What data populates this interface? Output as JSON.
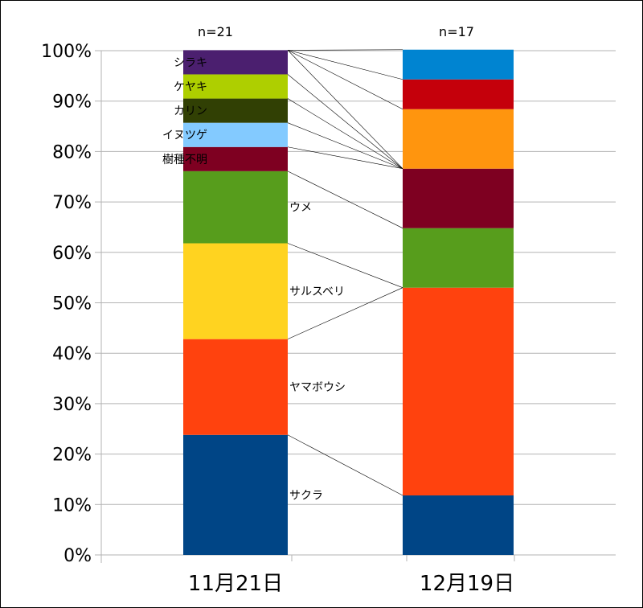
{
  "chart_data": {
    "type": "bar",
    "stacked": true,
    "normalized": true,
    "categories": [
      "11月21日",
      "12月19日"
    ],
    "sample_sizes": [
      "n=21",
      "n=17"
    ],
    "series": [
      {
        "name": "サクラ",
        "color": "#004586",
        "values": [
          23.8,
          11.8
        ]
      },
      {
        "name": "ヤマボウシ",
        "color": "#ff420e",
        "values": [
          19.0,
          41.2
        ]
      },
      {
        "name": "サルスベリ",
        "color": "#ffd320",
        "values": [
          19.0,
          0
        ]
      },
      {
        "name": "ウメ",
        "color": "#579d1c",
        "values": [
          14.3,
          11.8
        ]
      },
      {
        "name": "樹種不明",
        "color": "#7e0021",
        "values": [
          4.8,
          11.8
        ]
      },
      {
        "name": "イヌツゲ",
        "color": "#83caff",
        "values": [
          4.8,
          0
        ]
      },
      {
        "name": "カリン",
        "color": "#314004",
        "values": [
          4.8,
          0
        ]
      },
      {
        "name": "ケヤキ",
        "color": "#aecf00",
        "values": [
          4.8,
          0
        ]
      },
      {
        "name": "シラキ",
        "color": "#4b1f6f",
        "values": [
          4.8,
          0
        ]
      },
      {
        "color": "#ff950e",
        "values": [
          0,
          11.8
        ]
      },
      {
        "color": "#c5000b",
        "values": [
          0,
          5.9
        ]
      },
      {
        "color": "#0084d1",
        "values": [
          0,
          5.9
        ]
      }
    ],
    "y_ticks": [
      "0%",
      "10%",
      "20%",
      "30%",
      "40%",
      "50%",
      "60%",
      "70%",
      "80%",
      "90%",
      "100%"
    ],
    "ylim": [
      0,
      100
    ],
    "grid": true,
    "legend": "none"
  }
}
